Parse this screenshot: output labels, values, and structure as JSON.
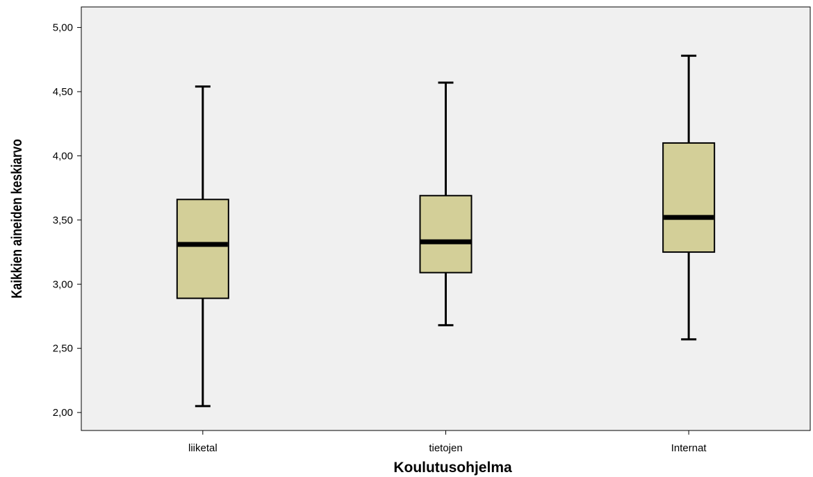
{
  "chart_data": {
    "type": "boxplot",
    "title": "",
    "xlabel": "Koulutusohjelma",
    "ylabel": "Kaikkien aineiden keskiarvo",
    "ylim": [
      1.86,
      5.16
    ],
    "yticks": [
      2.0,
      2.5,
      3.0,
      3.5,
      4.0,
      4.5,
      5.0
    ],
    "ytick_labels": [
      "2,00",
      "2,50",
      "3,00",
      "3,50",
      "4,00",
      "4,50",
      "5,00"
    ],
    "categories": [
      "liiketal",
      "tietojen",
      "Internat"
    ],
    "boxes": [
      {
        "category": "liiketal",
        "min": 2.05,
        "q1": 2.89,
        "median": 3.31,
        "q3": 3.66,
        "max": 4.54
      },
      {
        "category": "tietojen",
        "min": 2.68,
        "q1": 3.09,
        "median": 3.33,
        "q3": 3.69,
        "max": 4.57
      },
      {
        "category": "Internat",
        "min": 2.57,
        "q1": 3.25,
        "median": 3.52,
        "q3": 4.1,
        "max": 4.78
      }
    ],
    "grid": false,
    "colors": {
      "plot_background": "#f0f0f0",
      "box_fill": "#d3cf98",
      "stroke": "#000000"
    }
  }
}
